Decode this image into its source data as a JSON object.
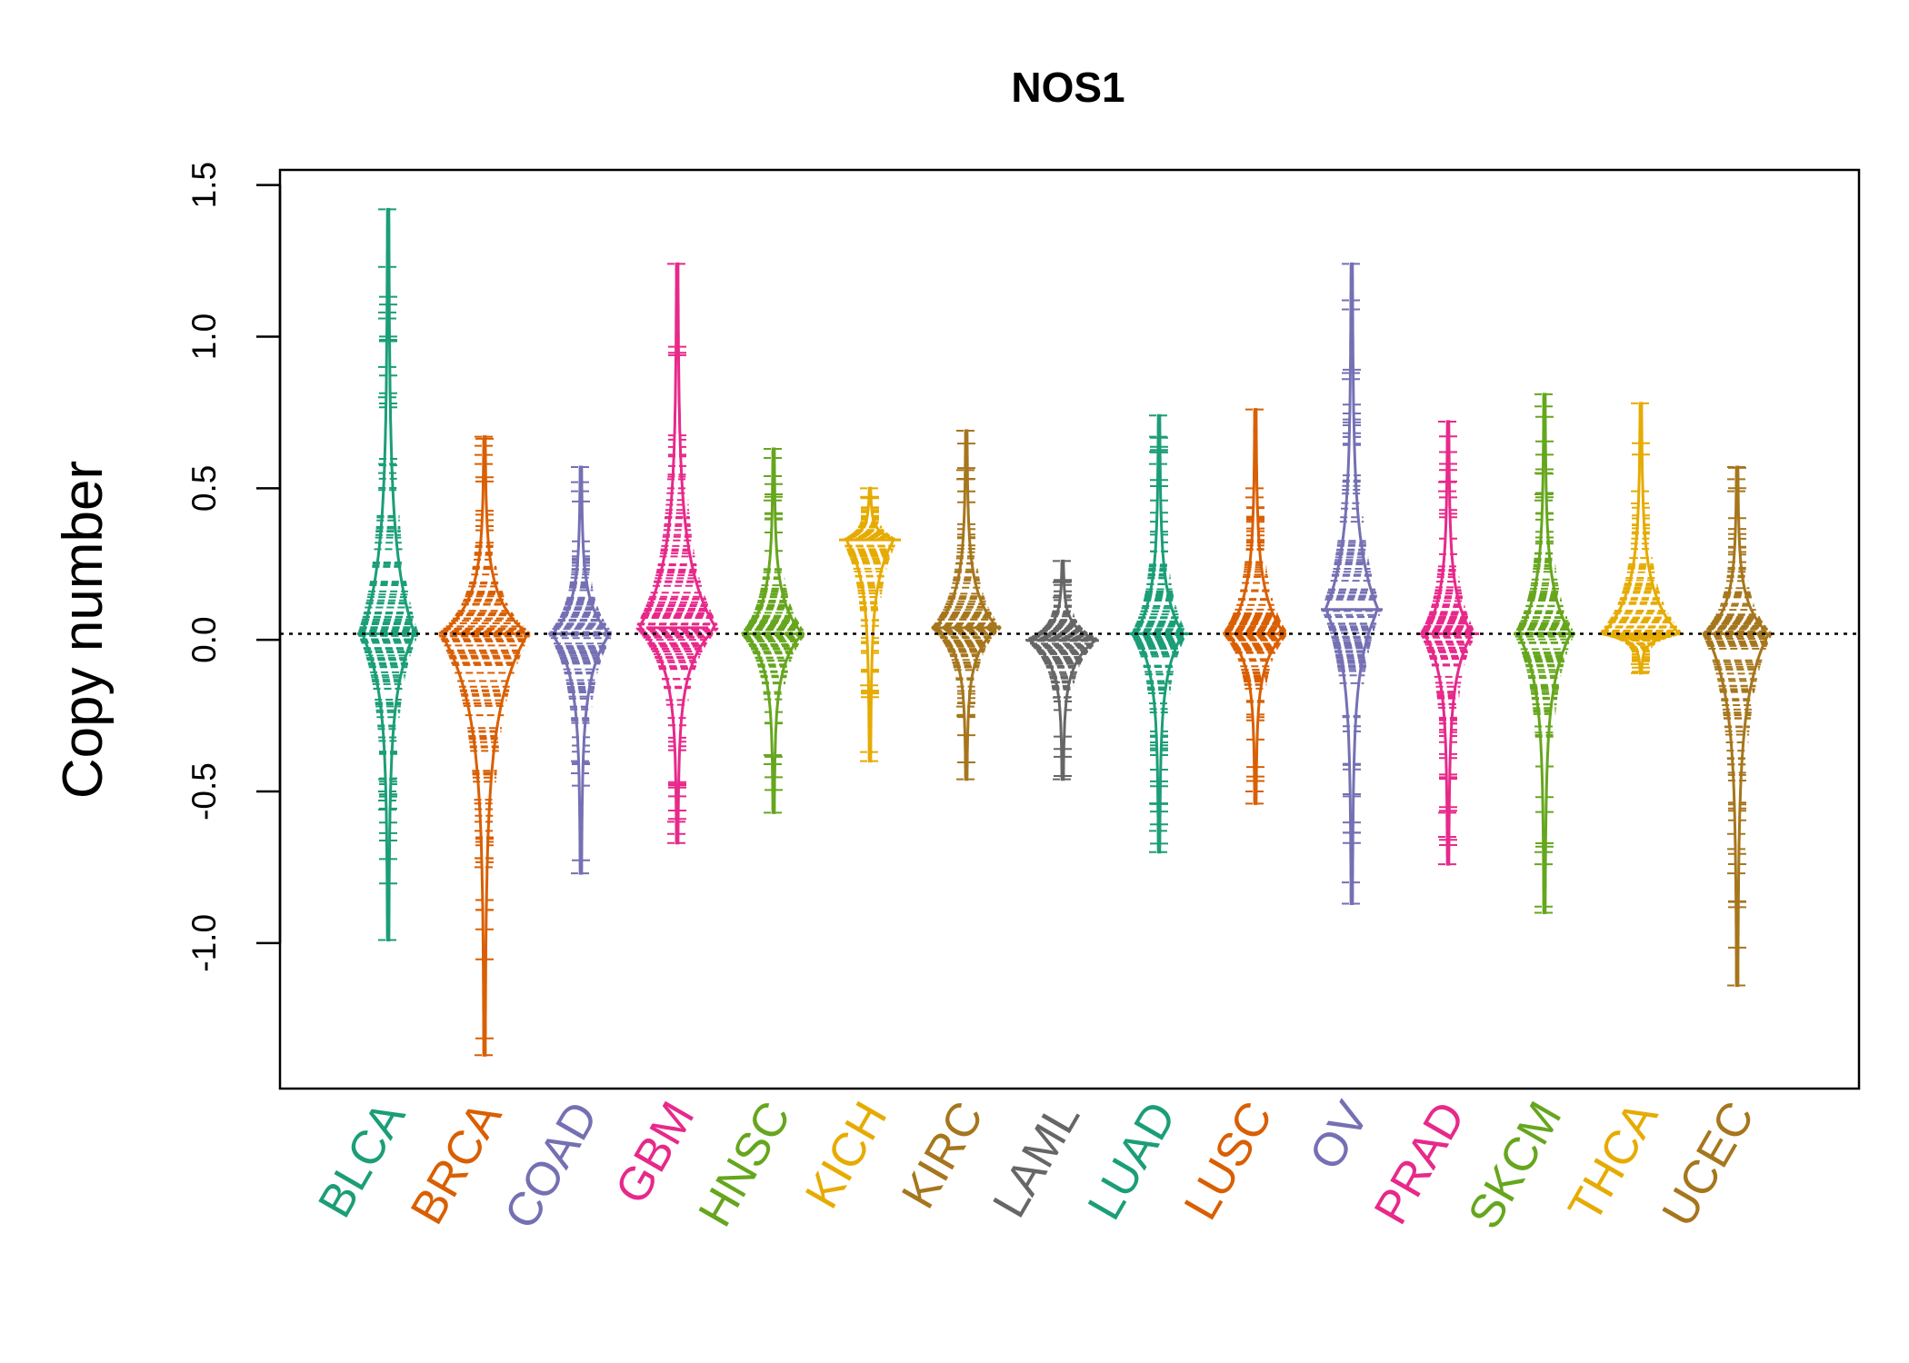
{
  "chart_data": {
    "type": "beanplot",
    "title": "NOS1",
    "xlabel": "",
    "ylabel": "Copy number",
    "ylim": [
      -1.48,
      1.55
    ],
    "yticks": [
      -1.0,
      -0.5,
      0.0,
      0.5,
      1.0,
      1.5
    ],
    "ytick_labels": [
      "-1.0",
      "-0.5",
      "0.0",
      "0.5",
      "1.0",
      "1.5"
    ],
    "reference_line": 0.02,
    "categories": [
      "BLCA",
      "BRCA",
      "COAD",
      "GBM",
      "HNSC",
      "KICH",
      "KIRC",
      "LAML",
      "LUAD",
      "LUSC",
      "OV",
      "PRAD",
      "SKCM",
      "THCA",
      "UCEC"
    ],
    "colors": [
      "#1B9E77",
      "#D95F02",
      "#7570B3",
      "#E7298A",
      "#66A61E",
      "#E6AB02",
      "#A6761D",
      "#666666",
      "#1B9E77",
      "#D95F02",
      "#7570B3",
      "#E7298A",
      "#66A61E",
      "#E6AB02",
      "#A6761D"
    ],
    "series": [
      {
        "name": "BLCA",
        "min": -0.99,
        "max": 1.42,
        "center": 0.02,
        "peak_width": 0.5,
        "outliers": [
          1.42,
          1.23,
          1.08,
          1.06,
          0.9,
          0.8,
          0.58,
          0.55,
          -0.46,
          -0.5,
          -0.53,
          -0.56,
          -0.99
        ]
      },
      {
        "name": "BRCA",
        "min": -1.37,
        "max": 0.67,
        "center": 0.02,
        "peak_width": 0.85,
        "outliers": [
          0.67,
          0.64,
          0.61,
          0.58,
          -0.6,
          -0.63,
          -0.72,
          -0.75,
          -1.37
        ]
      },
      {
        "name": "COAD",
        "min": -0.77,
        "max": 0.57,
        "center": 0.02,
        "peak_width": 0.55,
        "outliers": [
          0.57,
          0.52,
          0.49,
          -0.4,
          -0.44,
          -0.77
        ]
      },
      {
        "name": "GBM",
        "min": -0.67,
        "max": 1.24,
        "center": 0.04,
        "peak_width": 0.75,
        "outliers": [
          1.24,
          0.53,
          0.5,
          -0.6,
          -0.64,
          -0.67
        ]
      },
      {
        "name": "HNSC",
        "min": -0.57,
        "max": 0.63,
        "center": 0.02,
        "peak_width": 0.55,
        "outliers": [
          0.63,
          0.6,
          0.54,
          0.46,
          -0.38,
          -0.41,
          -0.57
        ]
      },
      {
        "name": "KICH",
        "min": -0.4,
        "max": 0.5,
        "center": 0.33,
        "peak_width": 0.45,
        "outliers": [
          0.5,
          0.47,
          -0.15,
          -0.37,
          -0.4
        ]
      },
      {
        "name": "KIRC",
        "min": -0.46,
        "max": 0.69,
        "center": 0.04,
        "peak_width": 0.6,
        "outliers": [
          0.69,
          0.56,
          0.53,
          -0.22,
          -0.25,
          -0.46
        ]
      },
      {
        "name": "LAML",
        "min": -0.46,
        "max": 0.26,
        "center": 0.0,
        "peak_width": 0.65,
        "outliers": [
          0.26,
          0.19,
          0.14,
          -0.14,
          -0.19,
          -0.46
        ]
      },
      {
        "name": "LUAD",
        "min": -0.7,
        "max": 0.74,
        "center": 0.02,
        "peak_width": 0.45,
        "outliers": [
          0.74,
          0.67,
          0.62,
          0.58,
          -0.54,
          -0.63,
          -0.7
        ]
      },
      {
        "name": "LUSC",
        "min": -0.54,
        "max": 0.76,
        "center": 0.02,
        "peak_width": 0.55,
        "outliers": [
          0.76,
          0.5,
          0.47,
          -0.5,
          -0.54
        ]
      },
      {
        "name": "OV",
        "min": -0.87,
        "max": 1.24,
        "center": 0.1,
        "peak_width": 0.5,
        "outliers": [
          1.24,
          1.12,
          1.09,
          0.88,
          0.86,
          -0.8,
          -0.87
        ]
      },
      {
        "name": "PRAD",
        "min": -0.74,
        "max": 0.72,
        "center": 0.02,
        "peak_width": 0.45,
        "outliers": [
          0.72,
          0.52,
          0.49,
          -0.57,
          -0.65,
          -0.74
        ]
      },
      {
        "name": "SKCM",
        "min": -0.9,
        "max": 0.81,
        "center": 0.02,
        "peak_width": 0.5,
        "outliers": [
          0.81,
          0.77,
          0.55,
          0.48,
          0.46,
          -0.7,
          -0.74,
          -0.88,
          -0.9
        ]
      },
      {
        "name": "THCA",
        "min": -0.11,
        "max": 0.78,
        "center": 0.02,
        "peak_width": 0.75,
        "outliers": [
          0.78,
          0.49,
          0.45,
          0.3,
          0.27,
          -0.08,
          -0.11
        ]
      },
      {
        "name": "UCEC",
        "min": -1.14,
        "max": 0.57,
        "center": 0.02,
        "peak_width": 0.6,
        "outliers": [
          0.57,
          0.53,
          0.49,
          -0.64,
          -0.69,
          -0.77,
          -1.14
        ]
      }
    ]
  }
}
